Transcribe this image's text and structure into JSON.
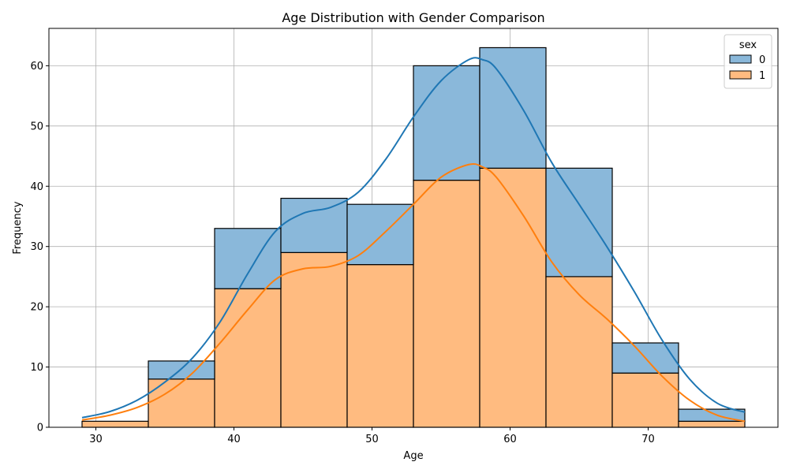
{
  "chart_data": {
    "type": "bar",
    "stacked": true,
    "title": "Age Distribution with Gender Comparison",
    "xlabel": "Age",
    "ylabel": "Frequency",
    "xlim": [
      26.6,
      79.4
    ],
    "ylim": [
      0,
      66.2
    ],
    "xticks": [
      30,
      40,
      50,
      60,
      70
    ],
    "yticks": [
      0,
      10,
      20,
      30,
      40,
      50,
      60
    ],
    "grid": true,
    "legend": {
      "title": "sex",
      "placement": "top-right"
    },
    "bin_edges": [
      29,
      33.8,
      38.6,
      43.4,
      48.2,
      53,
      57.8,
      62.6,
      67.4,
      72.2,
      77
    ],
    "series": [
      {
        "name": "1",
        "color": "#ffbb80",
        "line_color": "#ff7f0e",
        "values": [
          1,
          8,
          23,
          29,
          27,
          41,
          43,
          25,
          9,
          1
        ]
      },
      {
        "name": "0",
        "color": "#8ab8da",
        "line_color": "#1f77b4",
        "values": [
          0,
          3,
          10,
          9,
          10,
          19,
          20,
          18,
          5,
          2
        ]
      }
    ],
    "kde": [
      {
        "name": "0",
        "color": "#1f77b4",
        "points": [
          [
            29,
            1.6
          ],
          [
            31,
            2.6
          ],
          [
            33,
            4.5
          ],
          [
            35,
            7.5
          ],
          [
            37,
            11.5
          ],
          [
            39,
            17.5
          ],
          [
            41,
            25.5
          ],
          [
            43,
            32.5
          ],
          [
            45,
            35.5
          ],
          [
            47,
            36.5
          ],
          [
            49,
            39
          ],
          [
            51,
            44.5
          ],
          [
            53,
            51.5
          ],
          [
            55,
            57.5
          ],
          [
            57,
            61
          ],
          [
            58,
            61
          ],
          [
            59,
            59.5
          ],
          [
            61,
            52.5
          ],
          [
            63,
            44
          ],
          [
            65,
            37
          ],
          [
            67,
            30
          ],
          [
            69,
            22.5
          ],
          [
            71,
            14.5
          ],
          [
            73,
            8
          ],
          [
            75,
            4
          ],
          [
            77,
            2.5
          ]
        ]
      },
      {
        "name": "1",
        "color": "#ff7f0e",
        "points": [
          [
            29,
            1.2
          ],
          [
            31,
            2
          ],
          [
            33,
            3.3
          ],
          [
            35,
            5.5
          ],
          [
            37,
            9
          ],
          [
            39,
            14
          ],
          [
            41,
            19.5
          ],
          [
            43,
            24.5
          ],
          [
            45,
            26.3
          ],
          [
            47,
            26.7
          ],
          [
            49,
            28.5
          ],
          [
            51,
            32.5
          ],
          [
            53,
            37
          ],
          [
            55,
            41.5
          ],
          [
            57,
            43.6
          ],
          [
            58,
            43.2
          ],
          [
            59,
            41.5
          ],
          [
            61,
            35
          ],
          [
            63,
            27.5
          ],
          [
            65,
            22
          ],
          [
            67,
            18
          ],
          [
            69,
            13.5
          ],
          [
            71,
            8.5
          ],
          [
            73,
            4.5
          ],
          [
            75,
            2
          ],
          [
            77,
            1
          ]
        ]
      }
    ]
  }
}
